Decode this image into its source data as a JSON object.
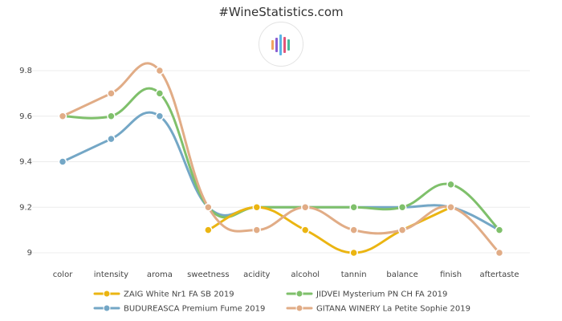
{
  "page": {
    "title": "#WineStatistics.com",
    "logo_icon": "wine-statistics-bars-logo",
    "logo_colors": [
      "#f1a35f",
      "#8b5fd2",
      "#5ab4e6",
      "#e2547b",
      "#49b79a"
    ]
  },
  "chart_data": {
    "type": "line",
    "title": "",
    "xlabel": "",
    "ylabel": "",
    "categories": [
      "color",
      "intensity",
      "aroma",
      "sweetness",
      "acidity",
      "alcohol",
      "tannin",
      "balance",
      "finish",
      "aftertaste"
    ],
    "y_ticks": [
      "9",
      "9.2",
      "9.4",
      "9.6",
      "9.8"
    ],
    "ylim": [
      9.0,
      9.8
    ],
    "grid": true,
    "legend_position": "bottom",
    "series": [
      {
        "name": "ZAIG White Nr1 FA SB 2019",
        "color": "#ebb512",
        "values": [
          null,
          null,
          null,
          9.1,
          9.2,
          9.1,
          9.0,
          9.1,
          9.2,
          null
        ]
      },
      {
        "name": "JIDVEI Mysterium PN CH FA 2019",
        "color": "#7fc06b",
        "values": [
          9.6,
          9.6,
          9.7,
          9.2,
          9.2,
          9.2,
          9.2,
          9.2,
          9.3,
          9.1
        ]
      },
      {
        "name": "BUDUREASCA Premium Fume 2019",
        "color": "#74a7c6",
        "values": [
          9.4,
          9.5,
          9.6,
          9.2,
          9.2,
          9.2,
          9.2,
          9.2,
          9.2,
          9.1
        ]
      },
      {
        "name": "GITANA WINERY La Petite Sophie 2019",
        "color": "#e1ac86",
        "values": [
          9.6,
          9.7,
          9.8,
          9.2,
          9.1,
          9.2,
          9.1,
          9.1,
          9.2,
          9.0
        ]
      }
    ]
  }
}
